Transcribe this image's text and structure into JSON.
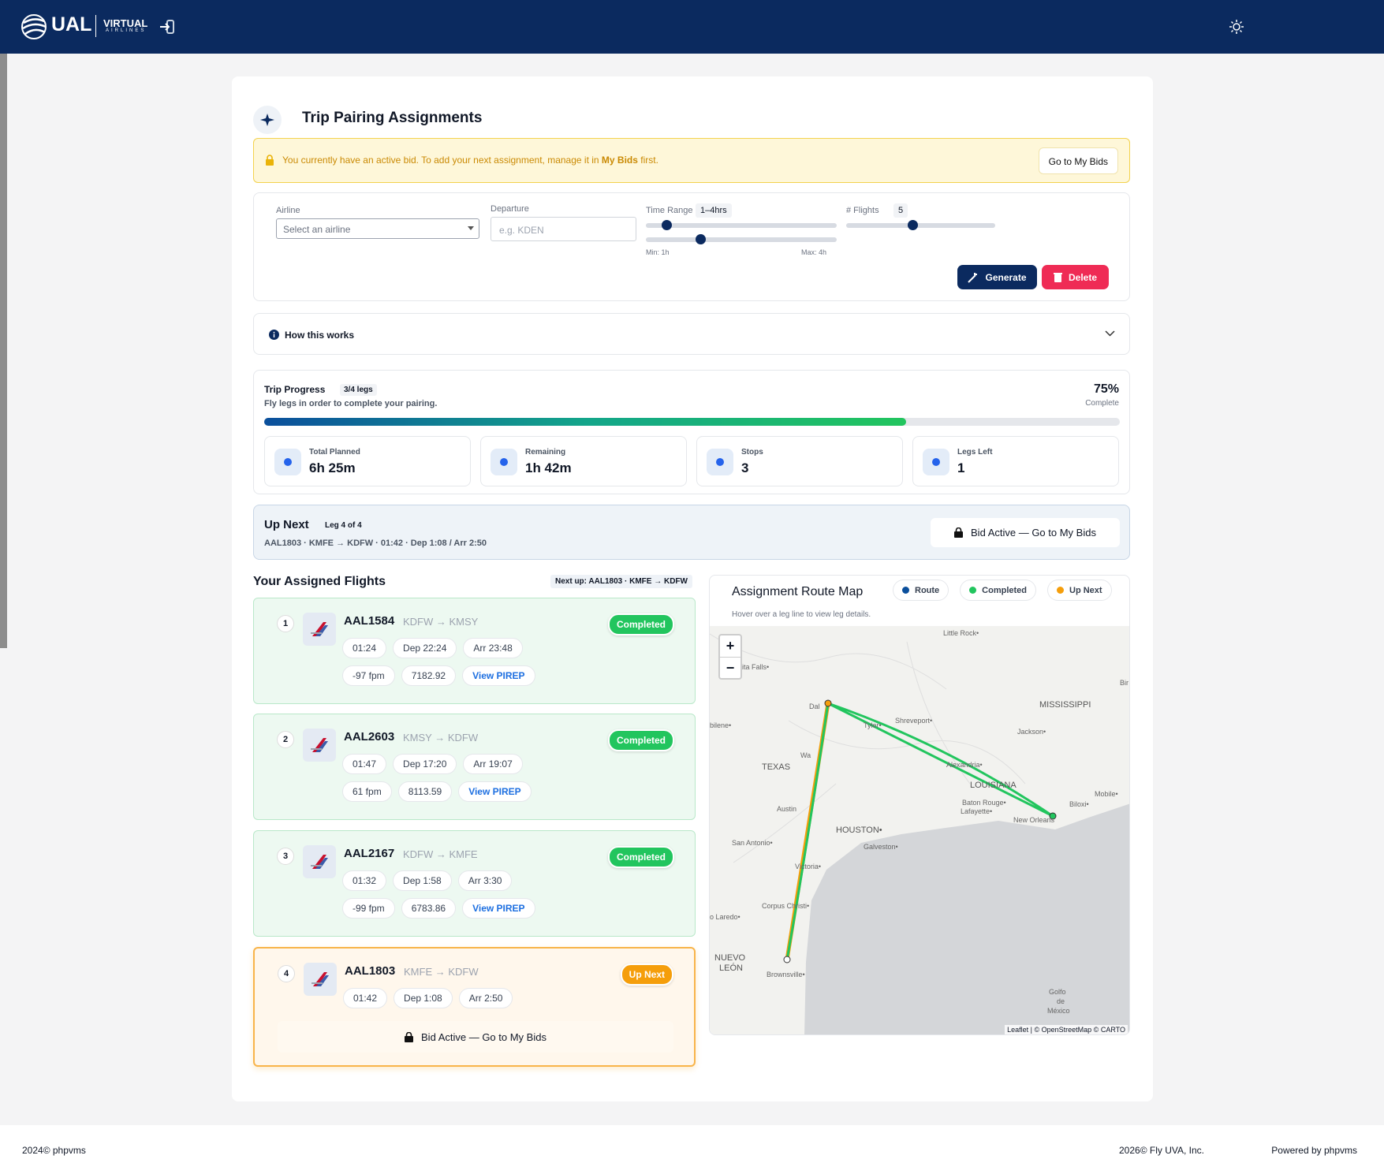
{
  "header": {
    "logo": "UAL",
    "logo_sub": "VIRTUAL",
    "logo_sub2": "AIRLINES"
  },
  "page": {
    "title": "Trip Pairing Assignments"
  },
  "alert": {
    "text": "You currently have an active bid. To add your next assignment, manage it in",
    "link": "My Bids",
    "text_end": "first.",
    "button": "Go to My Bids"
  },
  "filters": {
    "airline_label": "Airline",
    "airline_placeholder": "Select an airline",
    "departure_label": "Departure",
    "departure_placeholder": "e.g. KDEN",
    "time_label": "Time Range",
    "time_value": "1–4hrs",
    "time_min": "Min: 1h",
    "time_max": "Max: 4h",
    "flights_label": "# Flights",
    "flights_value": "5",
    "generate": "Generate",
    "delete": "Delete"
  },
  "how": {
    "title": "How this works"
  },
  "progress": {
    "title": "Trip Progress",
    "legs": "3/4 legs",
    "subtitle": "Fly legs in order to complete your pairing.",
    "percent": 75,
    "percent_label": "75%",
    "complete": "Complete",
    "stats": [
      {
        "label": "Total Planned",
        "value": "6h 25m"
      },
      {
        "label": "Remaining",
        "value": "1h 42m"
      },
      {
        "label": "Stops",
        "value": "3"
      },
      {
        "label": "Legs Left",
        "value": "1"
      }
    ]
  },
  "up_next": {
    "title": "Up Next",
    "leg": "Leg 4 of 4",
    "detail": "AAL1803 · KMFE → KDFW · 01:42 · Dep 1:08 / Arr 2:50",
    "button": "Bid Active — Go to My Bids"
  },
  "flights": {
    "title": "Your Assigned Flights",
    "badge": "Next up: AAL1803 · KMFE → KDFW",
    "items": [
      {
        "number": "1",
        "flight": "AAL1584",
        "route": "KDFW → KMSY",
        "status": "Completed",
        "duration": "01:24",
        "dep": "Dep 22:24",
        "arr": "Arr 23:48",
        "fpm": "-97 fpm",
        "fuel": "7182.92",
        "link": "View PIREP"
      },
      {
        "number": "2",
        "flight": "AAL2603",
        "route": "KMSY → KDFW",
        "status": "Completed",
        "duration": "01:47",
        "dep": "Dep 17:20",
        "arr": "Arr 19:07",
        "fpm": "61 fpm",
        "fuel": "8113.59",
        "link": "View PIREP"
      },
      {
        "number": "3",
        "flight": "AAL2167",
        "route": "KDFW → KMFE",
        "status": "Completed",
        "duration": "01:32",
        "dep": "Dep 1:58",
        "arr": "Arr 3:30",
        "fpm": "-99 fpm",
        "fuel": "6783.86",
        "link": "View PIREP"
      },
      {
        "number": "4",
        "flight": "AAL1803",
        "route": "KMFE → KDFW",
        "status": "Up Next",
        "duration": "01:42",
        "dep": "Dep 1:08",
        "arr": "Arr 2:50",
        "action": "Bid Active — Go to My Bids"
      }
    ]
  },
  "map": {
    "title": "Assignment Route Map",
    "legend": [
      "Route",
      "Completed",
      "Up Next"
    ],
    "hint": "Hover over a leg line to view leg details.",
    "zoom_in": "+",
    "zoom_out": "−",
    "attribution": "Leaflet | © OpenStreetMap © CARTO",
    "labels": [
      "Little Rock•",
      "hita Falls•",
      "Dal",
      "MISSISSIPPI",
      "Shreveport•",
      "Tyler•",
      "Jackson•",
      "bilene•",
      "Wa",
      "TEXAS",
      "Alexandria•",
      "LOUISIANA",
      "Mobile•",
      "Biloxi•",
      "Austin",
      "Baton Rouge•",
      "Lafayette•",
      "New Orleans",
      "HOUSTON•",
      "San Antonio•",
      "Galveston•",
      "Victoria•",
      "Corpus Christi•",
      "o Laredo•",
      "NUEVO",
      "LEÓN",
      "Brownsville•",
      "Golfo",
      "de",
      "México",
      "Bir"
    ]
  },
  "footer": {
    "left": "2024© phpvms",
    "right": "2026© Fly UVA, Inc.",
    "powered": "Powered by phpvms"
  }
}
